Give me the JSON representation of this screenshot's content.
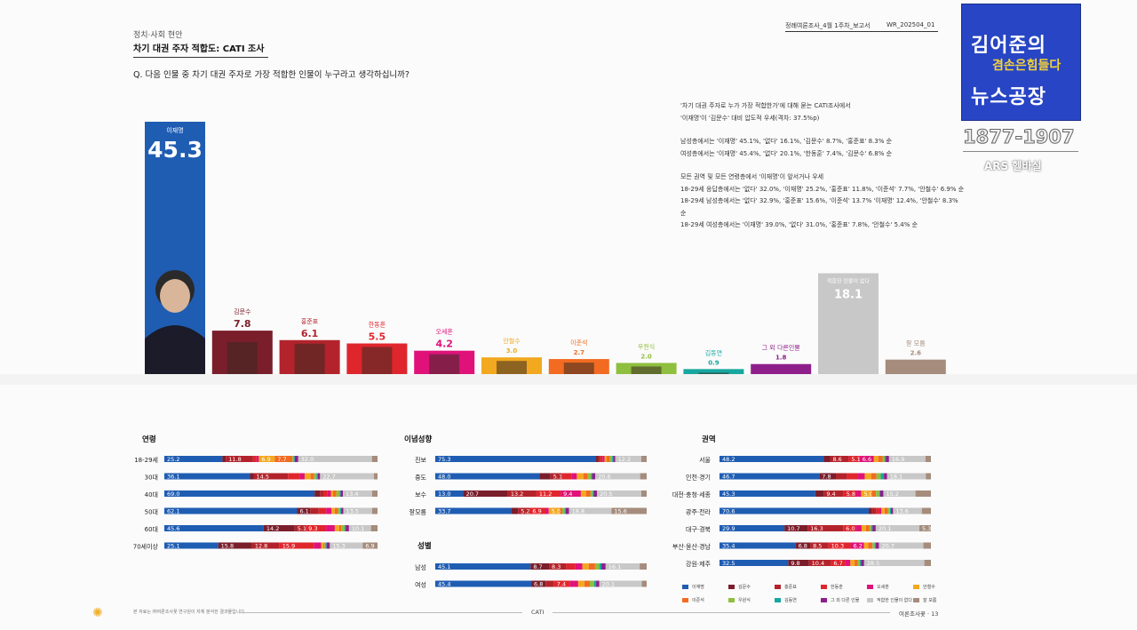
{
  "header": {
    "crumb": "정치·사회 현안",
    "title": "차기 대권 주자 적합도: CATI 조사",
    "question": "Q. 다음 인물 중 차기 대권 주자로 가장 적합한 인물이 누구라고 생각하십니까?",
    "report": "정례여론조사_4월 1주차_보고서",
    "code": "WR_202504_01"
  },
  "summary": [
    "'차기 대권 주자로 누가 가장 적합한가'에 대해 묻는 CATI조사에서",
    "'이재명'이 '김문수' 대비 압도적 우세(격차: 37.5%p)",
    "",
    "남성층에서는 '이재명' 45.1%, '없다' 16.1%, '김문수' 8.7%, '홍준표' 8.3% 순",
    "여성층에서는 '이재명' 45.4%, '없다' 20.1%, '한동훈' 7.4%, '김문수' 6.8% 순",
    "",
    "모든 권역 및 모든 연령층에서 '이재명'이 앞서거나 우세",
    "18-29세 응답층에서는 '없다' 32.0%, '이재명' 25.2%, '홍준표' 11.8%, '이준석' 7.7%, '안철수' 6.9% 순",
    "18-29세 남성층에서는 '없다' 32.9%, '홍준표' 15.6%, '이준석' 13.7% '이재명' 12.4%, '안철수' 8.3% 순",
    "18-29세 여성층에서는 '이재명' 39.0%, '없다' 31.0%, '홍준표' 7.8%, '안철수' 5.4% 순"
  ],
  "logo": {
    "line1": "김어준의",
    "line2": "겸손은힘들다",
    "line3": "뉴스공장",
    "phone": "1877-1907",
    "ars": "ARS 헬바실"
  },
  "colors": {
    "이재명": "#1f5db3",
    "김문수": "#7a1e2c",
    "홍준표": "#b3232b",
    "한동훈": "#e0262d",
    "오세훈": "#e0127a",
    "안철수": "#f2a81f",
    "이준석": "#f26b21",
    "우원식": "#8fbf3f",
    "김동연": "#16a7a0",
    "그 외 다른 인물": "#8e1f8a",
    "적합한 인물이 없다": "#c8c8c8",
    "잘 모름": "#a58c7c"
  },
  "chart_data": [
    {
      "type": "bar",
      "title": "차기 대권 주자 적합도",
      "categories": [
        "이재명",
        "김문수",
        "홍준표",
        "한동훈",
        "오세훈",
        "안철수",
        "이준석",
        "우원식",
        "김동연",
        "그 외 다른인물",
        "적합한 인물이 없다",
        "잘 모름"
      ],
      "values": [
        45.3,
        7.8,
        6.1,
        5.5,
        4.2,
        3.0,
        2.7,
        2.0,
        0.9,
        1.8,
        18.1,
        2.6
      ],
      "ylim": [
        0,
        50
      ]
    },
    {
      "type": "bar",
      "stacked": true,
      "title": "연령",
      "series_names": [
        "이재명",
        "김문수",
        "홍준표",
        "한동훈",
        "오세훈",
        "안철수",
        "이준석",
        "우원식",
        "김동연",
        "그 외 다른 인물",
        "적합한 인물이 없다",
        "잘 모름"
      ],
      "rows": [
        {
          "label": "18-29세",
          "values": [
            25.2,
            1.5,
            11.8,
            1.5,
            1.0,
            6.9,
            7.7,
            0.5,
            0.5,
            1.5,
            32.0,
            2.4
          ],
          "labels": [
            "25.2",
            "",
            "11.8",
            "",
            "",
            "6.9",
            "7.7",
            "",
            "",
            "",
            "32.0",
            ""
          ]
        },
        {
          "label": "30대",
          "values": [
            36.1,
            1.5,
            14.5,
            5.0,
            2.0,
            2.5,
            1.5,
            1.0,
            0.5,
            1.0,
            22.7,
            1.5
          ],
          "labels": [
            "36.1",
            "",
            "14.5",
            "",
            "",
            "",
            "",
            "",
            "",
            "",
            "22.7",
            ""
          ]
        },
        {
          "label": "40대",
          "values": [
            69.0,
            2.5,
            1.5,
            2.0,
            1.5,
            1.0,
            1.5,
            1.5,
            0.5,
            1.0,
            13.4,
            2.5
          ],
          "labels": [
            "69.0",
            "",
            "",
            "",
            "",
            "",
            "",
            "",
            "",
            "",
            "13.4",
            ""
          ]
        },
        {
          "label": "50대",
          "values": [
            62.1,
            6.1,
            4.0,
            3.5,
            2.5,
            1.5,
            1.5,
            1.0,
            0.5,
            1.0,
            13.5,
            2.5
          ],
          "labels": [
            "62.1",
            "6.1",
            "",
            "",
            "",
            "",
            "",
            "",
            "",
            "",
            "13.5",
            ""
          ]
        },
        {
          "label": "60대",
          "values": [
            45.6,
            14.2,
            5.1,
            9.3,
            4.0,
            2.0,
            1.0,
            1.5,
            0.5,
            1.5,
            10.1,
            3.0
          ],
          "labels": [
            "45.6",
            "14.2",
            "5.1",
            "9.3",
            "",
            "",
            "",
            "",
            "",
            "",
            "10.1",
            ""
          ]
        },
        {
          "label": "70세이상",
          "values": [
            25.1,
            15.8,
            12.8,
            15.9,
            3.5,
            1.0,
            0.5,
            0.5,
            0.5,
            1.5,
            15.3,
            6.9
          ],
          "labels": [
            "25.1",
            "15.8",
            "12.8",
            "15.9",
            "",
            "",
            "",
            "",
            "",
            "",
            "15.3",
            "6.9"
          ]
        }
      ]
    },
    {
      "type": "bar",
      "stacked": true,
      "title": "이념성향",
      "rows": [
        {
          "label": "진보",
          "values": [
            75.3,
            1.0,
            1.0,
            1.0,
            1.0,
            1.0,
            1.5,
            1.0,
            0.5,
            1.0,
            12.2,
            2.5
          ],
          "labels": [
            "75.3",
            "",
            "",
            "",
            "",
            "",
            "",
            "",
            "",
            "",
            "12.2",
            ""
          ]
        },
        {
          "label": "중도",
          "values": [
            48.0,
            5.0,
            5.1,
            4.5,
            2.5,
            3.0,
            2.0,
            1.5,
            0.5,
            1.5,
            20.6,
            3.0
          ],
          "labels": [
            "48.0",
            "",
            "5.1",
            "",
            "",
            "",
            "",
            "",
            "",
            "",
            "20.6",
            ""
          ]
        },
        {
          "label": "보수",
          "values": [
            13.0,
            20.7,
            13.2,
            11.2,
            9.4,
            2.5,
            2.0,
            1.0,
            0.5,
            1.5,
            20.5,
            2.5
          ],
          "labels": [
            "13.0",
            "20.7",
            "13.2",
            "11.2",
            "9.4",
            "",
            "",
            "",
            "",
            "",
            "20.5",
            ""
          ]
        },
        {
          "label": "잘모름",
          "values": [
            33.7,
            3.0,
            5.2,
            6.9,
            1.5,
            5.0,
            1.0,
            1.0,
            0.5,
            1.5,
            18.8,
            15.6
          ],
          "labels": [
            "33.7",
            "",
            "5.2",
            "6.9",
            "",
            "5.0",
            "",
            "",
            "",
            "",
            "18.8",
            "15.6"
          ]
        }
      ]
    },
    {
      "type": "bar",
      "stacked": true,
      "title": "성별",
      "rows": [
        {
          "label": "남성",
          "values": [
            45.1,
            8.7,
            8.3,
            4.0,
            3.5,
            3.0,
            3.0,
            2.0,
            1.0,
            2.0,
            16.1,
            3.3
          ],
          "labels": [
            "45.1",
            "8.7",
            "8.3",
            "",
            "",
            "",
            "",
            "",
            "",
            "",
            "16.1",
            ""
          ]
        },
        {
          "label": "여성",
          "values": [
            45.4,
            6.8,
            4.0,
            7.4,
            4.0,
            3.0,
            2.5,
            2.0,
            1.0,
            1.5,
            20.1,
            2.3
          ],
          "labels": [
            "45.4",
            "6.8",
            "",
            "7.4",
            "",
            "",
            "",
            "",
            "",
            "",
            "20.1",
            ""
          ]
        }
      ]
    },
    {
      "type": "bar",
      "stacked": true,
      "title": "권역",
      "rows": [
        {
          "label": "서울",
          "values": [
            48.2,
            3.0,
            8.6,
            5.1,
            6.6,
            2.0,
            2.0,
            1.0,
            0.5,
            1.5,
            16.9,
            2.5
          ],
          "labels": [
            "48.2",
            "",
            "8.6",
            "5.1",
            "6.6",
            "",
            "",
            "",
            "",
            "",
            "16.9",
            ""
          ]
        },
        {
          "label": "인천·경기",
          "values": [
            46.7,
            7.8,
            5.0,
            5.0,
            3.5,
            3.0,
            2.5,
            2.0,
            1.5,
            1.5,
            18.1,
            2.4
          ],
          "labels": [
            "46.7",
            "7.8",
            "",
            "",
            "",
            "",
            "",
            "",
            "",
            "",
            "18.1",
            ""
          ]
        },
        {
          "label": "대전·충청·세종",
          "values": [
            45.3,
            4.0,
            9.4,
            5.8,
            2.5,
            5.0,
            2.0,
            1.5,
            0.5,
            1.5,
            15.2,
            7.3
          ],
          "labels": [
            "45.3",
            "",
            "9.4",
            "5.8",
            "",
            "5.0",
            "",
            "",
            "",
            "",
            "15.2",
            ""
          ]
        },
        {
          "label": "광주·전라",
          "values": [
            70.6,
            1.5,
            2.0,
            1.5,
            1.0,
            1.5,
            1.5,
            1.0,
            0.5,
            1.0,
            13.6,
            4.3
          ],
          "labels": [
            "70.6",
            "",
            "",
            "",
            "",
            "",
            "",
            "",
            "",
            "",
            "13.6",
            ""
          ]
        },
        {
          "label": "대구·경북",
          "values": [
            29.9,
            10.7,
            16.3,
            6.0,
            2.5,
            2.0,
            1.5,
            1.0,
            0.5,
            1.5,
            20.1,
            5.3
          ],
          "labels": [
            "29.9",
            "10.7",
            "16.3",
            "6.0",
            "",
            "",
            "",
            "",
            "",
            "",
            "20.1",
            "5.3"
          ]
        },
        {
          "label": "부산·울산·경남",
          "values": [
            35.4,
            6.8,
            8.5,
            10.3,
            6.2,
            2.0,
            2.0,
            1.0,
            0.5,
            1.5,
            20.7,
            3.5
          ],
          "labels": [
            "35.4",
            "6.8",
            "8.5",
            "10.3",
            "6.2",
            "",
            "",
            "",
            "",
            "",
            "20.7",
            ""
          ]
        },
        {
          "label": "강원·제주",
          "values": [
            32.5,
            9.8,
            10.4,
            6.7,
            2.5,
            2.0,
            1.5,
            1.0,
            0.5,
            1.5,
            28.5,
            3.1
          ],
          "labels": [
            "32.5",
            "9.8",
            "10.4",
            "6.7",
            "",
            "",
            "",
            "",
            "",
            "",
            "28.5",
            ""
          ]
        }
      ]
    }
  ],
  "legend": [
    "이재명",
    "김문수",
    "홍준표",
    "한동훈",
    "오세훈",
    "안철수",
    "이준석",
    "우원식",
    "김동연",
    "그 외 다른 인물",
    "적합한 인물이 없다",
    "잘 모름"
  ],
  "footer": {
    "note": "본 자료는 ㈜여론조사꽃 연구원이 자체 분석한 결과물입니다",
    "center": "CATI",
    "right": "여론조사꽃 · 13"
  }
}
